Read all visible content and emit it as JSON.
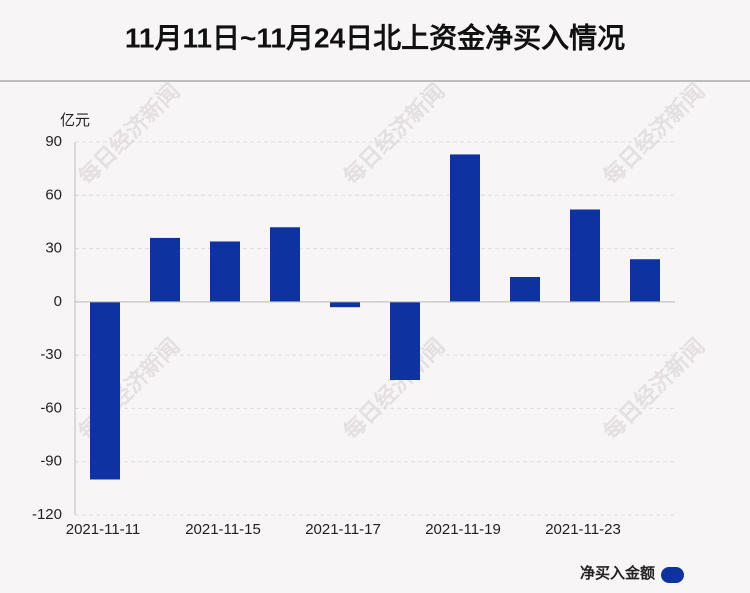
{
  "chart_data": {
    "type": "bar",
    "title": "11月11日~11月24日北上资金净买入情况",
    "y_label": "亿元",
    "watermark": "每日经济新闻",
    "categories": [
      "2021-11-11",
      null,
      "2021-11-15",
      null,
      "2021-11-17",
      null,
      "2021-11-19",
      null,
      "2021-11-23",
      null
    ],
    "series": [
      {
        "name": "净买入金额",
        "color": "#0e33a0",
        "values": [
          -100,
          36,
          34,
          42,
          -3,
          -44,
          83,
          14,
          52,
          24
        ]
      }
    ],
    "ylim": [
      -120,
      90
    ],
    "yticks": [
      -120,
      -90,
      -60,
      -30,
      0,
      30,
      60,
      90
    ],
    "grid": true,
    "legend": "bottom-right"
  }
}
